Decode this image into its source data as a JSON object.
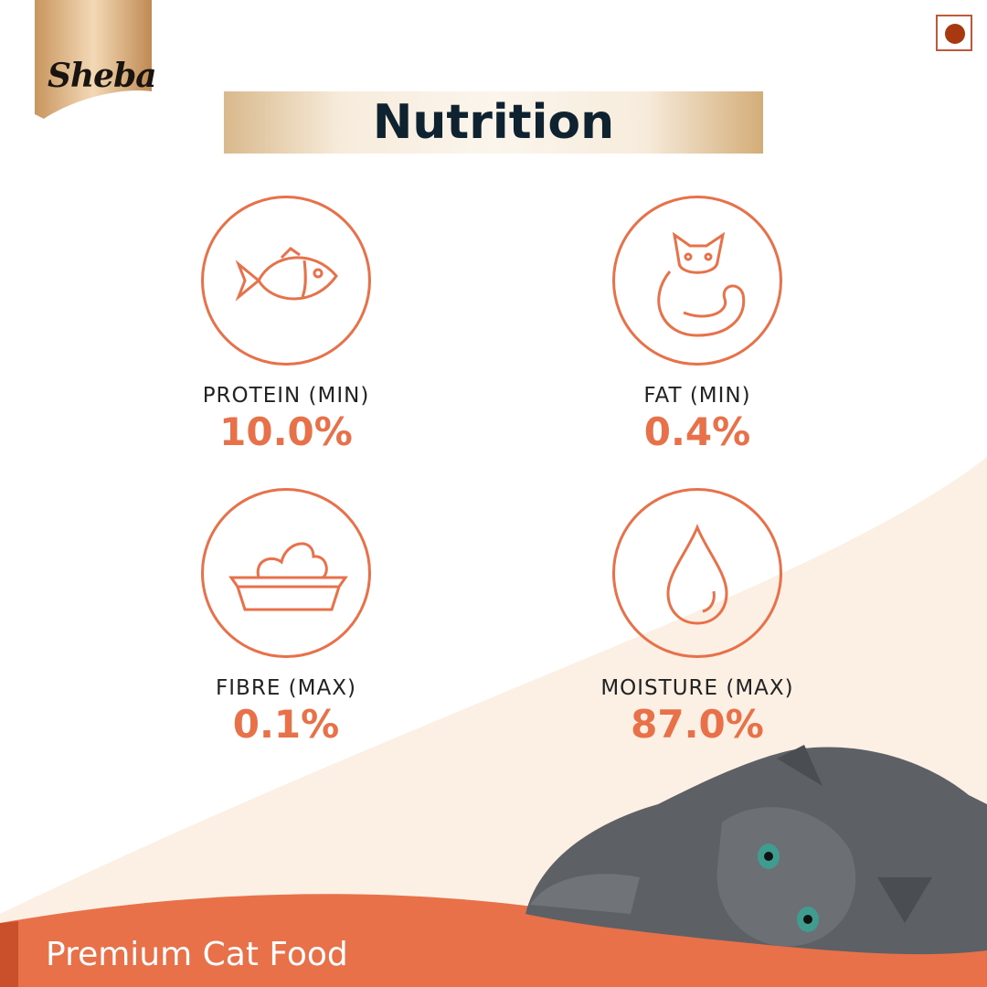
{
  "brand": {
    "logo_text": "Sheba"
  },
  "diet_mark": {
    "type": "non-vegetarian",
    "color": "#a8380f"
  },
  "title": "Nutrition",
  "nutrients": [
    {
      "label": "PROTEIN (MIN)",
      "value": "10.0%",
      "icon": "fish-icon"
    },
    {
      "label": "FAT (MIN)",
      "value": "0.4%",
      "icon": "cat-icon"
    },
    {
      "label": "FIBRE (MAX)",
      "value": "0.1%",
      "icon": "litter-tray-icon"
    },
    {
      "label": "MOISTURE (MAX)",
      "value": "87.0%",
      "icon": "water-drop-icon"
    }
  ],
  "footer": {
    "tagline": "Premium Cat Food"
  },
  "colors": {
    "accent": "#e8714a",
    "title": "#0f2230",
    "beige": "#fcefe4",
    "band": "#e8714a"
  }
}
